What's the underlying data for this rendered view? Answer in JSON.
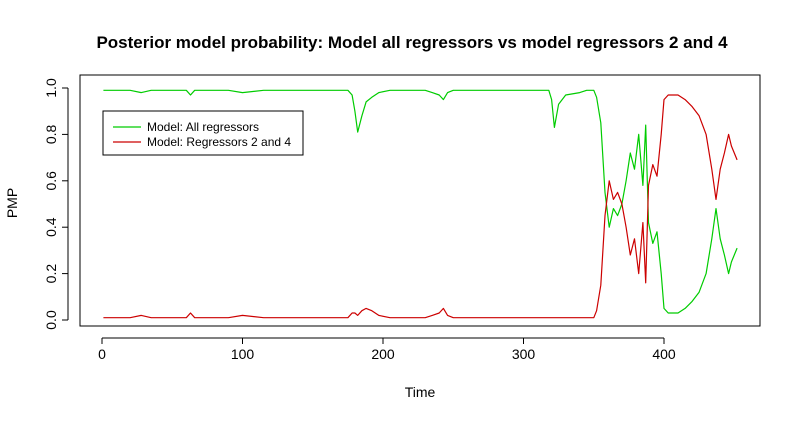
{
  "chart_data": {
    "type": "line",
    "title": "Posterior model probability: Model all regressors vs model regressors 2 and 4",
    "xlabel": "Time",
    "ylabel": "PMP",
    "xlim": [
      0,
      460
    ],
    "ylim": [
      0,
      1.0
    ],
    "x_ticks": [
      "0",
      "100",
      "200",
      "300",
      "400"
    ],
    "y_ticks": [
      "0.0",
      "0.2",
      "0.4",
      "0.6",
      "0.8",
      "1.0"
    ],
    "grid": false,
    "legend_position": "top-left",
    "colors": {
      "all": "#00cc00",
      "r24": "#cc0000"
    },
    "legend": [
      {
        "label": "Model: All regressors",
        "color": "#00cc00"
      },
      {
        "label": "Model: Regressors 2 and 4",
        "color": "#cc0000"
      }
    ],
    "series": [
      {
        "name": "Model: All regressors",
        "color": "#00cc00",
        "x": [
          1,
          10,
          20,
          28,
          35,
          50,
          60,
          63,
          66,
          75,
          90,
          100,
          115,
          120,
          140,
          160,
          170,
          175,
          178,
          180,
          182,
          185,
          188,
          192,
          197,
          205,
          215,
          225,
          230,
          235,
          240,
          243,
          246,
          250,
          260,
          270,
          280,
          290,
          300,
          310,
          318,
          320,
          322,
          325,
          330,
          340,
          345,
          350,
          352,
          355,
          358,
          361,
          364,
          367,
          370,
          373,
          376,
          379,
          382,
          385,
          387,
          389,
          392,
          395,
          398,
          400,
          403,
          406,
          410,
          415,
          420,
          425,
          430,
          434,
          437,
          440,
          443,
          446,
          448,
          452
        ],
        "y": [
          0.99,
          0.99,
          0.99,
          0.98,
          0.99,
          0.99,
          0.99,
          0.97,
          0.99,
          0.99,
          0.99,
          0.98,
          0.99,
          0.99,
          0.99,
          0.99,
          0.99,
          0.99,
          0.97,
          0.9,
          0.81,
          0.88,
          0.94,
          0.96,
          0.98,
          0.99,
          0.99,
          0.99,
          0.99,
          0.98,
          0.97,
          0.95,
          0.98,
          0.99,
          0.99,
          0.99,
          0.99,
          0.99,
          0.99,
          0.99,
          0.99,
          0.95,
          0.83,
          0.93,
          0.97,
          0.98,
          0.99,
          0.99,
          0.96,
          0.85,
          0.55,
          0.4,
          0.48,
          0.45,
          0.5,
          0.6,
          0.72,
          0.65,
          0.8,
          0.58,
          0.84,
          0.42,
          0.33,
          0.38,
          0.2,
          0.05,
          0.03,
          0.03,
          0.03,
          0.05,
          0.08,
          0.12,
          0.2,
          0.35,
          0.48,
          0.35,
          0.28,
          0.2,
          0.25,
          0.31
        ]
      },
      {
        "name": "Model: Regressors 2 and 4",
        "color": "#cc0000",
        "x": [
          1,
          10,
          20,
          28,
          35,
          50,
          60,
          63,
          66,
          75,
          90,
          100,
          115,
          120,
          140,
          160,
          170,
          175,
          178,
          180,
          182,
          185,
          188,
          192,
          197,
          205,
          215,
          225,
          230,
          235,
          240,
          243,
          246,
          250,
          260,
          270,
          280,
          290,
          300,
          310,
          318,
          320,
          322,
          325,
          330,
          340,
          345,
          350,
          352,
          355,
          358,
          361,
          364,
          367,
          370,
          373,
          376,
          379,
          382,
          385,
          387,
          389,
          392,
          395,
          398,
          400,
          403,
          406,
          410,
          415,
          420,
          425,
          430,
          434,
          437,
          440,
          443,
          446,
          448,
          452
        ],
        "y": [
          0.01,
          0.01,
          0.01,
          0.02,
          0.01,
          0.01,
          0.01,
          0.03,
          0.01,
          0.01,
          0.01,
          0.02,
          0.01,
          0.01,
          0.01,
          0.01,
          0.01,
          0.01,
          0.03,
          0.03,
          0.02,
          0.04,
          0.05,
          0.04,
          0.02,
          0.01,
          0.01,
          0.01,
          0.01,
          0.02,
          0.03,
          0.05,
          0.02,
          0.01,
          0.01,
          0.01,
          0.01,
          0.01,
          0.01,
          0.01,
          0.01,
          0.01,
          0.01,
          0.01,
          0.01,
          0.01,
          0.01,
          0.01,
          0.04,
          0.15,
          0.45,
          0.6,
          0.52,
          0.55,
          0.5,
          0.4,
          0.28,
          0.35,
          0.2,
          0.42,
          0.16,
          0.58,
          0.67,
          0.62,
          0.8,
          0.95,
          0.97,
          0.97,
          0.97,
          0.95,
          0.92,
          0.88,
          0.8,
          0.65,
          0.52,
          0.65,
          0.72,
          0.8,
          0.75,
          0.69
        ]
      }
    ]
  }
}
